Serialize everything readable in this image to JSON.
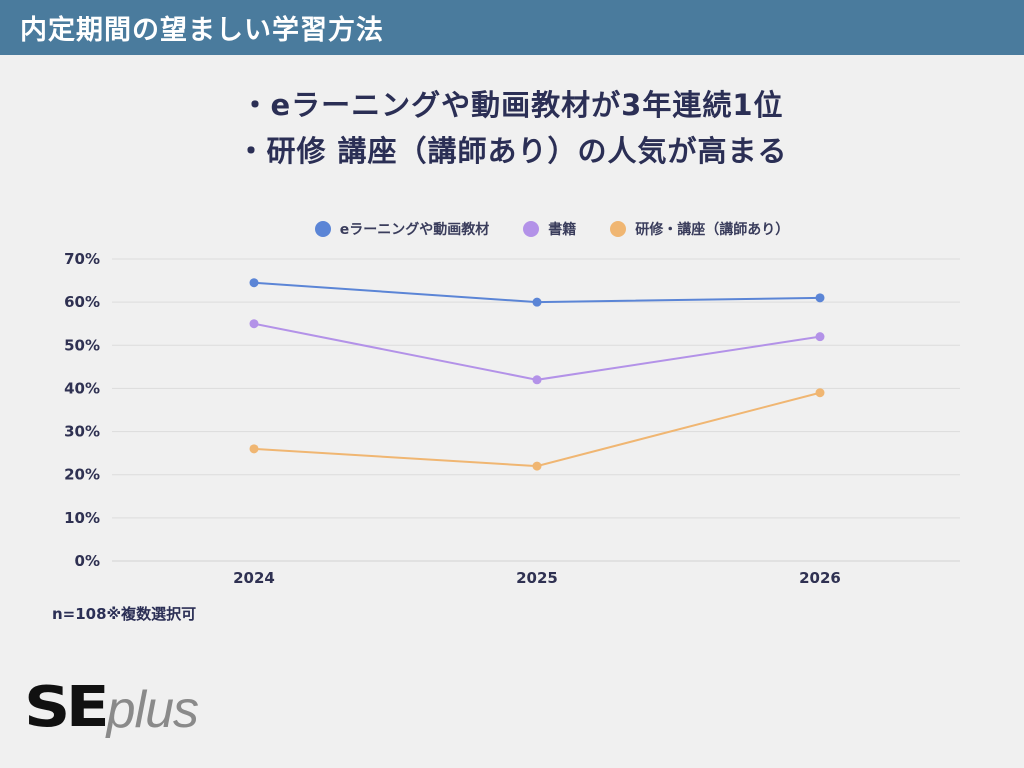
{
  "header": {
    "title": "内定期間の望ましい学習方法"
  },
  "headline": {
    "line1": "・eラーニングや動画教材が3年連続1位",
    "line2": "・研修 講座（講師あり）の人気が高まる"
  },
  "note": "n=108※複数選択可",
  "logo": {
    "primary": "SE",
    "secondary": "plus"
  },
  "colors": {
    "header_bg": "#4a7b9d",
    "series_1": "#5b85d6",
    "series_2": "#b392e8",
    "series_3": "#f0b672"
  },
  "chart_data": {
    "type": "line",
    "title": "",
    "xlabel": "",
    "ylabel": "",
    "categories": [
      "2024",
      "2025",
      "2026"
    ],
    "ylim": [
      0,
      70
    ],
    "yticks": [
      "0%",
      "10%",
      "20%",
      "30%",
      "40%",
      "50%",
      "60%",
      "70%"
    ],
    "grid": true,
    "legend_position": "top",
    "series": [
      {
        "name": "eラーニングや動画教材",
        "values": [
          64.5,
          60,
          61
        ],
        "color": "#5b85d6"
      },
      {
        "name": "書籍",
        "values": [
          55,
          42,
          52
        ],
        "color": "#b392e8"
      },
      {
        "name": "研修・講座（講師あり）",
        "values": [
          26,
          22,
          39
        ],
        "color": "#f0b672"
      }
    ]
  }
}
